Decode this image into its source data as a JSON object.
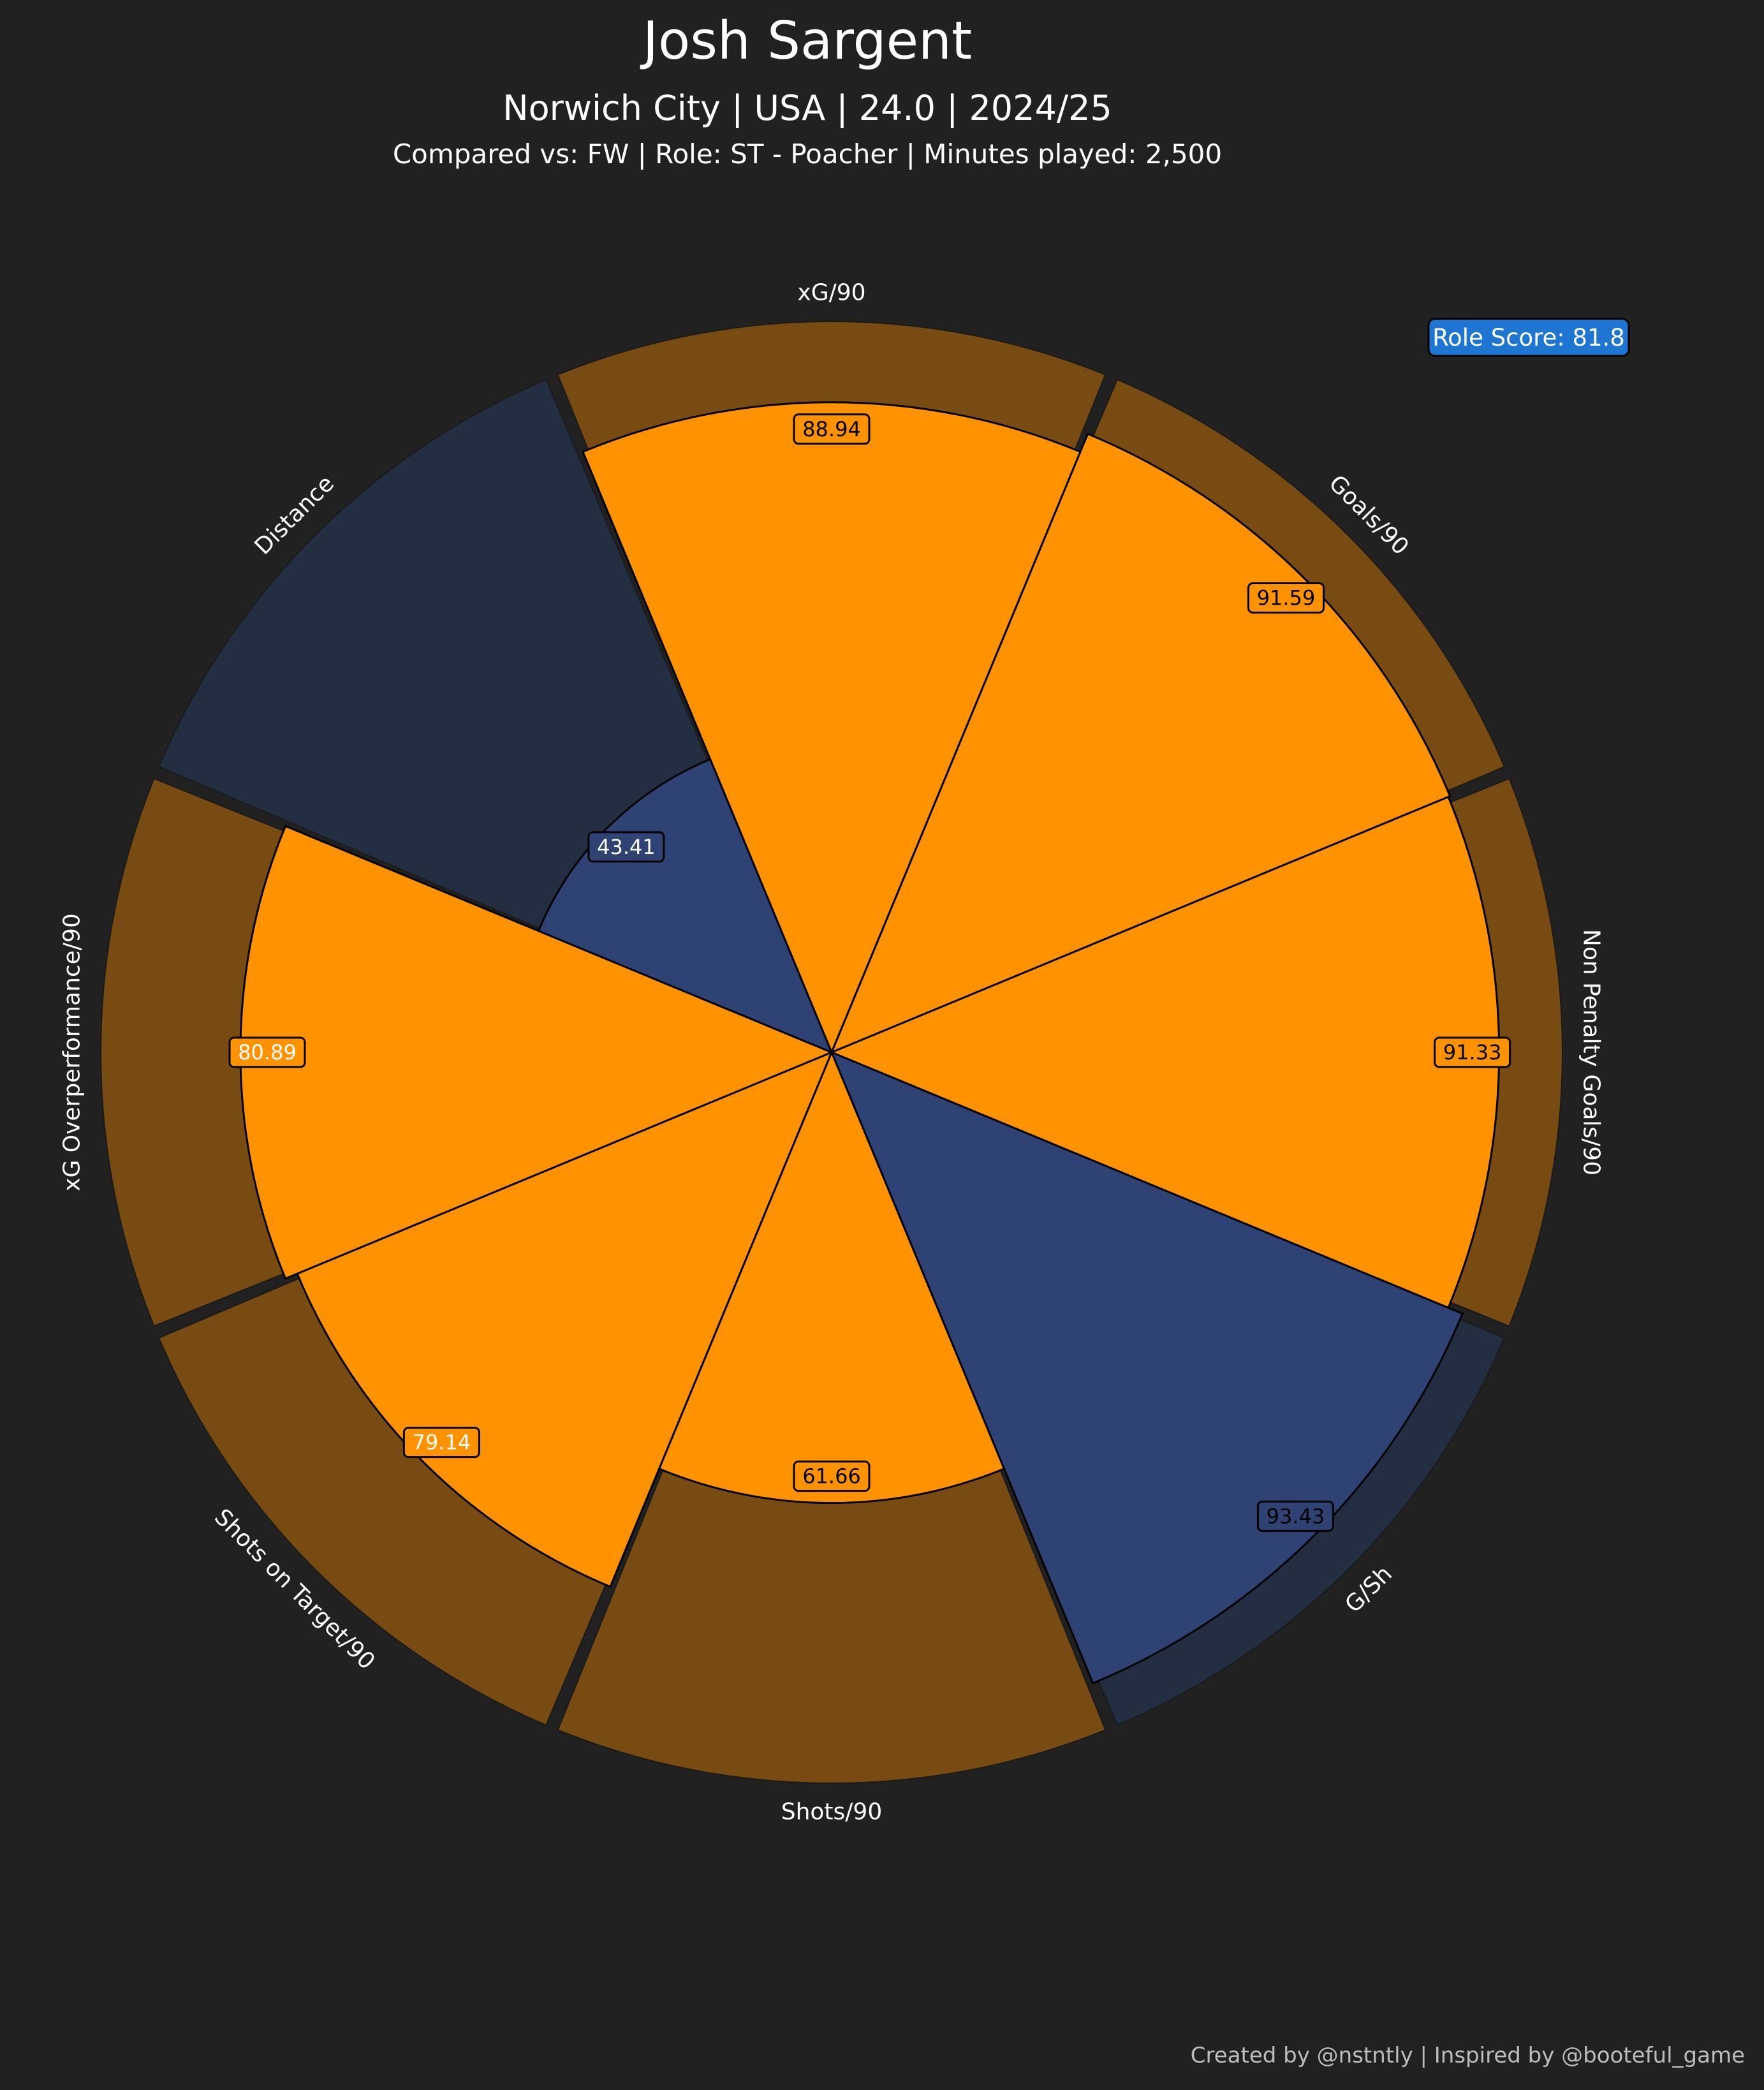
{
  "header": {
    "title": "Josh Sargent",
    "subtitle": "Norwich City | USA | 24.0 | 2024/25",
    "comparison": "Compared vs: FW | Role: ST - Poacher | Minutes played: 2,500"
  },
  "role_score": "Role Score: 81.8",
  "footer": "Created by @nstntly | Inspired by @booteful_game",
  "colors": {
    "background": "#212121",
    "orange": "#ff9200",
    "orange_bg": "#774b12",
    "blue": "#2e4273",
    "blue_bg": "#242e42",
    "role_badge": "#1f76d2"
  },
  "chart_data": {
    "type": "polar-bar",
    "ylim": [
      0,
      100
    ],
    "categories": [
      {
        "label": "xG/90",
        "value": 88.94,
        "value_label": "88.94",
        "group": "orange",
        "label_color": "#000000"
      },
      {
        "label": "Goals/90",
        "value": 91.59,
        "value_label": "91.59",
        "group": "orange",
        "label_color": "#000000"
      },
      {
        "label": "Non Penalty Goals/90",
        "value": 91.33,
        "value_label": "91.33",
        "group": "orange",
        "label_color": "#000000"
      },
      {
        "label": "G/Sh",
        "value": 93.43,
        "value_label": "93.43",
        "group": "blue",
        "label_color": "#000000"
      },
      {
        "label": "Shots/90",
        "value": 61.66,
        "value_label": "61.66",
        "group": "orange",
        "label_color": "#000000"
      },
      {
        "label": "Shots on Target/90",
        "value": 79.14,
        "value_label": "79.14",
        "group": "orange",
        "label_color": "#ffffff"
      },
      {
        "label": "xG Overperformance/90",
        "value": 80.89,
        "value_label": "80.89",
        "group": "orange",
        "label_color": "#ffffff"
      },
      {
        "label": "Distance",
        "value": 43.41,
        "value_label": "43.41",
        "group": "blue",
        "label_color": "#ffffff"
      }
    ]
  }
}
